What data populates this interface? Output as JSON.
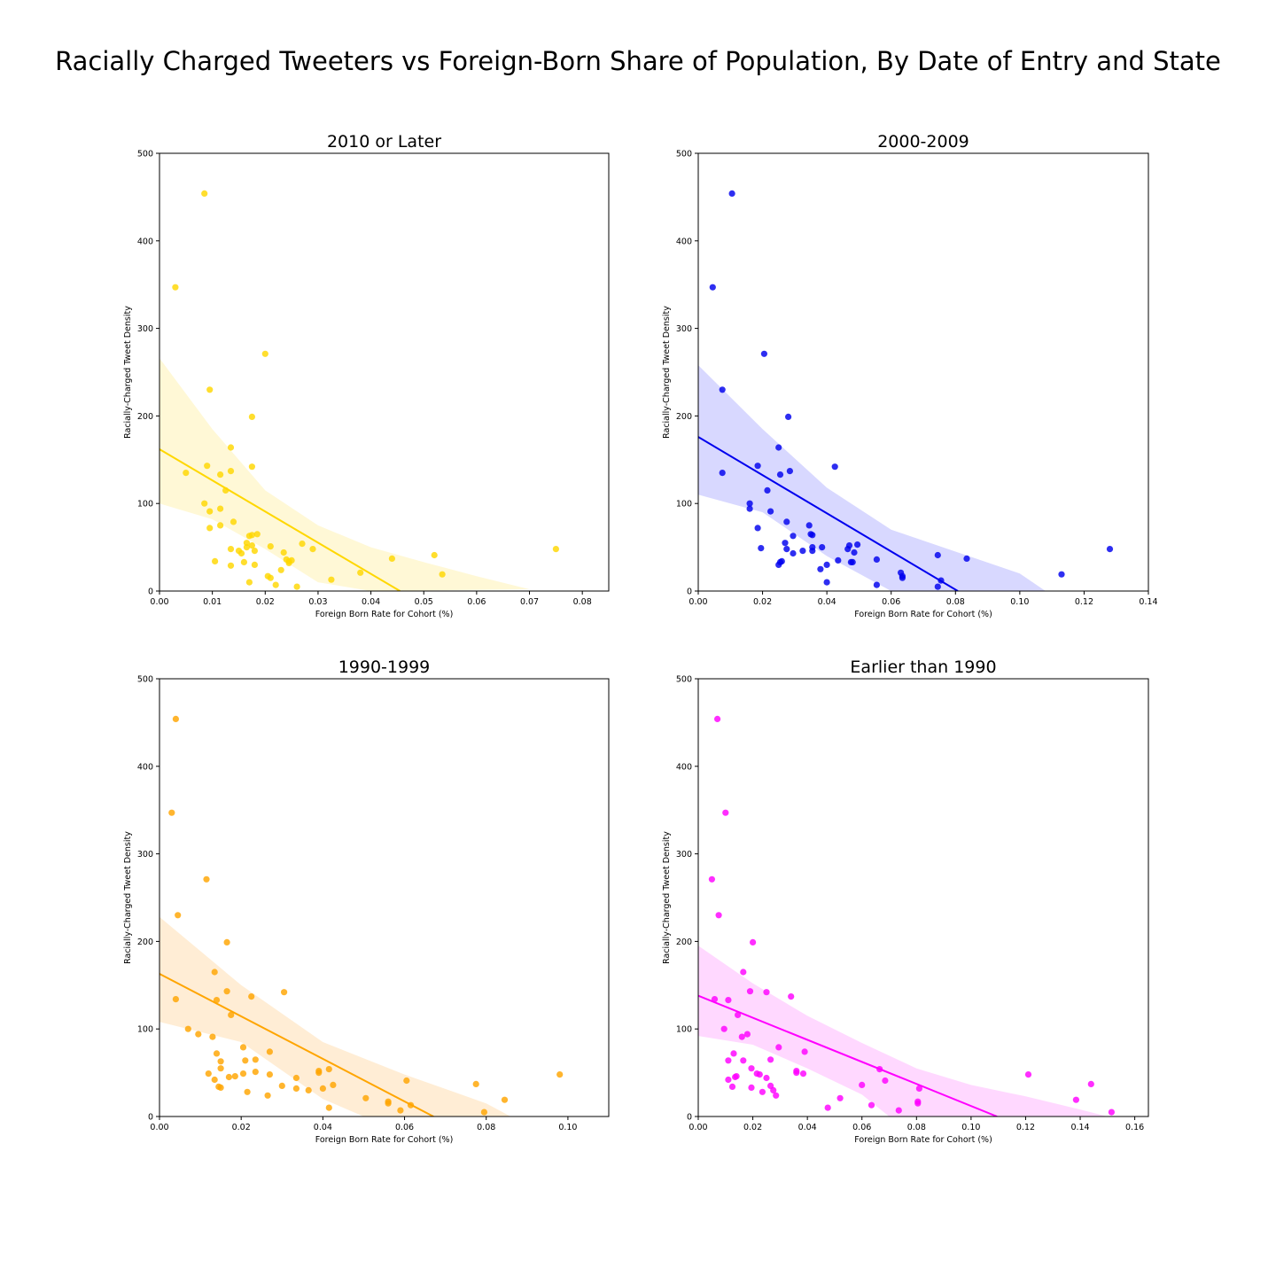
{
  "title": "Racially Charged Tweeters vs Foreign-Born Share of Population, By Date of Entry and State",
  "chart_data": [
    {
      "type": "scatter",
      "title": "2010 or Later",
      "xlabel": "Foreign Born Rate for Cohort (%)",
      "ylabel": "Racially-Charged Tweet Density",
      "xlim": [
        0,
        0.085
      ],
      "ylim": [
        0,
        500
      ],
      "xticks": [
        "0.00",
        "0.01",
        "0.02",
        "0.03",
        "0.04",
        "0.05",
        "0.06",
        "0.07",
        "0.08"
      ],
      "yticks": [
        "0",
        "100",
        "200",
        "300",
        "400",
        "500"
      ],
      "color": "#FFD700",
      "band_color": "#FFF8D6",
      "fit": {
        "intercept": 162,
        "slope": -3560
      },
      "band_upper": [
        [
          0,
          266
        ],
        [
          0.01,
          185
        ],
        [
          0.02,
          115
        ],
        [
          0.03,
          75
        ],
        [
          0.04,
          50
        ],
        [
          0.05,
          33
        ],
        [
          0.06,
          17
        ],
        [
          0.07,
          2
        ]
      ],
      "band_lower": [
        [
          0,
          100
        ],
        [
          0.01,
          82
        ],
        [
          0.02,
          48
        ],
        [
          0.03,
          10
        ],
        [
          0.04,
          0
        ]
      ],
      "points": [
        [
          0.0085,
          454
        ],
        [
          0.003,
          347
        ],
        [
          0.02,
          271
        ],
        [
          0.0095,
          230
        ],
        [
          0.0175,
          199
        ],
        [
          0.0135,
          164
        ],
        [
          0.009,
          143
        ],
        [
          0.0175,
          142
        ],
        [
          0.0135,
          137
        ],
        [
          0.005,
          135
        ],
        [
          0.0115,
          133
        ],
        [
          0.0125,
          115
        ],
        [
          0.0085,
          100
        ],
        [
          0.0115,
          94
        ],
        [
          0.0095,
          91
        ],
        [
          0.014,
          79
        ],
        [
          0.0115,
          75
        ],
        [
          0.0095,
          72
        ],
        [
          0.0185,
          65
        ],
        [
          0.0175,
          64
        ],
        [
          0.017,
          63
        ],
        [
          0.0165,
          55
        ],
        [
          0.0165,
          50
        ],
        [
          0.0175,
          52
        ],
        [
          0.021,
          51
        ],
        [
          0.027,
          54
        ],
        [
          0.029,
          48
        ],
        [
          0.0135,
          48
        ],
        [
          0.015,
          46
        ],
        [
          0.0155,
          43
        ],
        [
          0.018,
          46
        ],
        [
          0.0235,
          44
        ],
        [
          0.024,
          36
        ],
        [
          0.0245,
          34
        ],
        [
          0.025,
          35
        ],
        [
          0.0245,
          32
        ],
        [
          0.016,
          33
        ],
        [
          0.0105,
          34
        ],
        [
          0.0135,
          29
        ],
        [
          0.018,
          30
        ],
        [
          0.023,
          24
        ],
        [
          0.0205,
          17
        ],
        [
          0.021,
          15
        ],
        [
          0.022,
          7
        ],
        [
          0.017,
          10
        ],
        [
          0.026,
          5
        ],
        [
          0.0325,
          13
        ],
        [
          0.038,
          21
        ],
        [
          0.044,
          37
        ],
        [
          0.052,
          41
        ],
        [
          0.0535,
          19
        ],
        [
          0.075,
          48
        ]
      ]
    },
    {
      "type": "scatter",
      "title": "2000-2009",
      "xlabel": "Foreign Born Rate for Cohort (%)",
      "ylabel": "Racially-Charged Tweet Density",
      "xlim": [
        0,
        0.14
      ],
      "ylim": [
        0,
        500
      ],
      "xticks": [
        "0.00",
        "0.02",
        "0.04",
        "0.06",
        "0.08",
        "0.10",
        "0.12",
        "0.14"
      ],
      "yticks": [
        "0",
        "100",
        "200",
        "300",
        "400",
        "500"
      ],
      "color": "#0000EE",
      "band_color": "#D8D8FF",
      "fit": {
        "intercept": 176,
        "slope": -2180
      },
      "band_upper": [
        [
          0,
          258
        ],
        [
          0.02,
          185
        ],
        [
          0.04,
          118
        ],
        [
          0.06,
          70
        ],
        [
          0.08,
          45
        ],
        [
          0.1,
          20
        ],
        [
          0.108,
          0
        ]
      ],
      "band_lower": [
        [
          0,
          110
        ],
        [
          0.02,
          90
        ],
        [
          0.04,
          40
        ],
        [
          0.06,
          0
        ]
      ],
      "points": [
        [
          0.0105,
          454
        ],
        [
          0.0045,
          347
        ],
        [
          0.0205,
          271
        ],
        [
          0.0075,
          230
        ],
        [
          0.028,
          199
        ],
        [
          0.025,
          164
        ],
        [
          0.0185,
          143
        ],
        [
          0.0425,
          142
        ],
        [
          0.0075,
          135
        ],
        [
          0.0285,
          137
        ],
        [
          0.0255,
          133
        ],
        [
          0.0215,
          115
        ],
        [
          0.016,
          100
        ],
        [
          0.016,
          94
        ],
        [
          0.0225,
          91
        ],
        [
          0.0275,
          79
        ],
        [
          0.0345,
          75
        ],
        [
          0.0185,
          72
        ],
        [
          0.035,
          65
        ],
        [
          0.0355,
          64
        ],
        [
          0.0295,
          63
        ],
        [
          0.027,
          55
        ],
        [
          0.0495,
          53
        ],
        [
          0.047,
          52
        ],
        [
          0.0355,
          50
        ],
        [
          0.0385,
          50
        ],
        [
          0.0195,
          49
        ],
        [
          0.0275,
          48
        ],
        [
          0.0465,
          48
        ],
        [
          0.0355,
          46
        ],
        [
          0.0325,
          46
        ],
        [
          0.0485,
          44
        ],
        [
          0.0295,
          43
        ],
        [
          0.0745,
          41
        ],
        [
          0.0835,
          37
        ],
        [
          0.0435,
          35
        ],
        [
          0.0555,
          36
        ],
        [
          0.026,
          34
        ],
        [
          0.0255,
          33
        ],
        [
          0.0475,
          33
        ],
        [
          0.048,
          33
        ],
        [
          0.04,
          30
        ],
        [
          0.025,
          30
        ],
        [
          0.038,
          25
        ],
        [
          0.063,
          21
        ],
        [
          0.0635,
          17
        ],
        [
          0.0635,
          15
        ],
        [
          0.0755,
          12
        ],
        [
          0.04,
          10
        ],
        [
          0.0555,
          7
        ],
        [
          0.0745,
          5
        ],
        [
          0.113,
          19
        ],
        [
          0.128,
          48
        ]
      ]
    },
    {
      "type": "scatter",
      "title": "1990-1999",
      "xlabel": "Foreign Born Rate for Cohort (%)",
      "ylabel": "Racially-Charged Tweet Density",
      "xlim": [
        0,
        0.11
      ],
      "ylim": [
        0,
        500
      ],
      "xticks": [
        "0.00",
        "0.02",
        "0.04",
        "0.06",
        "0.08",
        "0.10"
      ],
      "yticks": [
        "0",
        "100",
        "200",
        "300",
        "400",
        "500"
      ],
      "color": "#FFA500",
      "band_color": "#FFEDD5",
      "fit": {
        "intercept": 163,
        "slope": -2430
      },
      "band_upper": [
        [
          0,
          228
        ],
        [
          0.02,
          150
        ],
        [
          0.04,
          85
        ],
        [
          0.06,
          48
        ],
        [
          0.08,
          15
        ],
        [
          0.086,
          0
        ]
      ],
      "band_lower": [
        [
          0,
          108
        ],
        [
          0.02,
          85
        ],
        [
          0.04,
          20
        ],
        [
          0.05,
          0
        ]
      ],
      "points": [
        [
          0.004,
          454
        ],
        [
          0.003,
          347
        ],
        [
          0.0115,
          271
        ],
        [
          0.0045,
          230
        ],
        [
          0.0165,
          199
        ],
        [
          0.0135,
          165
        ],
        [
          0.0165,
          143
        ],
        [
          0.0305,
          142
        ],
        [
          0.004,
          134
        ],
        [
          0.0225,
          137
        ],
        [
          0.014,
          133
        ],
        [
          0.0175,
          116
        ],
        [
          0.007,
          100
        ],
        [
          0.0095,
          94
        ],
        [
          0.013,
          91
        ],
        [
          0.0205,
          79
        ],
        [
          0.027,
          74
        ],
        [
          0.014,
          72
        ],
        [
          0.0235,
          65
        ],
        [
          0.021,
          64
        ],
        [
          0.015,
          63
        ],
        [
          0.015,
          55
        ],
        [
          0.0415,
          54
        ],
        [
          0.0235,
          51
        ],
        [
          0.039,
          52
        ],
        [
          0.039,
          50
        ],
        [
          0.0205,
          49
        ],
        [
          0.027,
          48
        ],
        [
          0.0185,
          46
        ],
        [
          0.017,
          45
        ],
        [
          0.012,
          49
        ],
        [
          0.0335,
          44
        ],
        [
          0.0135,
          42
        ],
        [
          0.0605,
          41
        ],
        [
          0.0775,
          37
        ],
        [
          0.0425,
          36
        ],
        [
          0.03,
          35
        ],
        [
          0.0145,
          34
        ],
        [
          0.015,
          33
        ],
        [
          0.04,
          32
        ],
        [
          0.0335,
          32
        ],
        [
          0.0365,
          30
        ],
        [
          0.0215,
          28
        ],
        [
          0.0265,
          24
        ],
        [
          0.0505,
          21
        ],
        [
          0.0845,
          19
        ],
        [
          0.056,
          17
        ],
        [
          0.056,
          15
        ],
        [
          0.0615,
          13
        ],
        [
          0.0415,
          10
        ],
        [
          0.059,
          7
        ],
        [
          0.0795,
          5
        ],
        [
          0.098,
          48
        ]
      ]
    },
    {
      "type": "scatter",
      "title": "Earlier than 1990",
      "xlabel": "Foreign Born Rate for Cohort (%)",
      "ylabel": "Racially-Charged Tweet Density",
      "xlim": [
        0,
        0.165
      ],
      "ylim": [
        0,
        500
      ],
      "xticks": [
        "0.00",
        "0.02",
        "0.04",
        "0.06",
        "0.08",
        "0.10",
        "0.12",
        "0.14",
        "0.16"
      ],
      "yticks": [
        "0",
        "100",
        "200",
        "300",
        "400",
        "500"
      ],
      "color": "#FF00FF",
      "band_color": "#FFD8FF",
      "fit": {
        "intercept": 138,
        "slope": -1260
      },
      "band_upper": [
        [
          0,
          195
        ],
        [
          0.02,
          152
        ],
        [
          0.04,
          115
        ],
        [
          0.06,
          84
        ],
        [
          0.08,
          55
        ],
        [
          0.1,
          36
        ],
        [
          0.12,
          23
        ],
        [
          0.14,
          8
        ],
        [
          0.15,
          0
        ]
      ],
      "band_lower": [
        [
          0,
          92
        ],
        [
          0.02,
          82
        ],
        [
          0.04,
          55
        ],
        [
          0.06,
          25
        ],
        [
          0.07,
          0
        ]
      ],
      "points": [
        [
          0.007,
          454
        ],
        [
          0.01,
          347
        ],
        [
          0.005,
          271
        ],
        [
          0.0075,
          230
        ],
        [
          0.02,
          199
        ],
        [
          0.0165,
          165
        ],
        [
          0.019,
          143
        ],
        [
          0.025,
          142
        ],
        [
          0.006,
          134
        ],
        [
          0.034,
          137
        ],
        [
          0.011,
          133
        ],
        [
          0.0145,
          116
        ],
        [
          0.0095,
          100
        ],
        [
          0.018,
          94
        ],
        [
          0.016,
          91
        ],
        [
          0.0295,
          79
        ],
        [
          0.039,
          74
        ],
        [
          0.013,
          72
        ],
        [
          0.0265,
          65
        ],
        [
          0.011,
          64
        ],
        [
          0.0165,
          64
        ],
        [
          0.0195,
          55
        ],
        [
          0.0665,
          54
        ],
        [
          0.036,
          52
        ],
        [
          0.036,
          50
        ],
        [
          0.0215,
          49
        ],
        [
          0.0385,
          49
        ],
        [
          0.0225,
          48
        ],
        [
          0.121,
          48
        ],
        [
          0.014,
          46
        ],
        [
          0.0135,
          45
        ],
        [
          0.025,
          44
        ],
        [
          0.011,
          42
        ],
        [
          0.0685,
          41
        ],
        [
          0.144,
          37
        ],
        [
          0.06,
          36
        ],
        [
          0.0265,
          35
        ],
        [
          0.0125,
          34
        ],
        [
          0.0195,
          33
        ],
        [
          0.081,
          32
        ],
        [
          0.0275,
          30
        ],
        [
          0.0235,
          28
        ],
        [
          0.0285,
          24
        ],
        [
          0.052,
          21
        ],
        [
          0.1385,
          19
        ],
        [
          0.0805,
          17
        ],
        [
          0.0805,
          15
        ],
        [
          0.0635,
          13
        ],
        [
          0.0475,
          10
        ],
        [
          0.0735,
          7
        ],
        [
          0.1515,
          5
        ]
      ]
    }
  ]
}
